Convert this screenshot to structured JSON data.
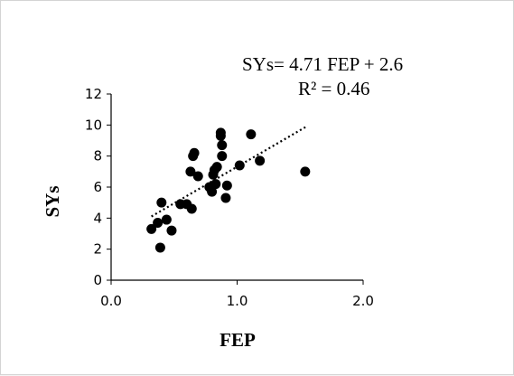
{
  "chart_data": {
    "type": "scatter",
    "title": "",
    "xlabel": "FEP",
    "ylabel": "SYs",
    "xlim": [
      0,
      2
    ],
    "ylim": [
      0,
      12
    ],
    "xticks": [
      "0.0",
      "1.0",
      "2.0"
    ],
    "yticks": [
      "0",
      "2",
      "4",
      "6",
      "8",
      "10",
      "12"
    ],
    "grid": false,
    "legend": "none",
    "trendline": {
      "style": "dotted",
      "slope": 4.71,
      "intercept": 2.6,
      "x_range": [
        0.32,
        1.55
      ],
      "equation": "SYs= 4.71 FEP + 2.6",
      "r2": "R² = 0.46"
    },
    "points": [
      {
        "x": 0.32,
        "y": 3.3
      },
      {
        "x": 0.37,
        "y": 3.7
      },
      {
        "x": 0.39,
        "y": 2.1
      },
      {
        "x": 0.4,
        "y": 5.0
      },
      {
        "x": 0.44,
        "y": 3.9
      },
      {
        "x": 0.48,
        "y": 3.2
      },
      {
        "x": 0.55,
        "y": 4.9
      },
      {
        "x": 0.6,
        "y": 4.9
      },
      {
        "x": 0.64,
        "y": 4.6
      },
      {
        "x": 0.63,
        "y": 7.0
      },
      {
        "x": 0.65,
        "y": 8.0
      },
      {
        "x": 0.66,
        "y": 8.2
      },
      {
        "x": 0.69,
        "y": 6.7
      },
      {
        "x": 0.78,
        "y": 6.0
      },
      {
        "x": 0.8,
        "y": 5.7
      },
      {
        "x": 0.81,
        "y": 6.8
      },
      {
        "x": 0.82,
        "y": 7.1
      },
      {
        "x": 0.84,
        "y": 7.3
      },
      {
        "x": 0.83,
        "y": 6.2
      },
      {
        "x": 0.87,
        "y": 9.5
      },
      {
        "x": 0.87,
        "y": 9.3
      },
      {
        "x": 0.88,
        "y": 8.7
      },
      {
        "x": 0.88,
        "y": 8.0
      },
      {
        "x": 0.92,
        "y": 6.1
      },
      {
        "x": 0.91,
        "y": 5.3
      },
      {
        "x": 1.02,
        "y": 7.4
      },
      {
        "x": 1.11,
        "y": 9.4
      },
      {
        "x": 1.18,
        "y": 7.7
      },
      {
        "x": 1.54,
        "y": 7.0
      }
    ],
    "colors": {
      "marker": "#000000",
      "axis": "#000000",
      "trendline": "#000000"
    }
  }
}
